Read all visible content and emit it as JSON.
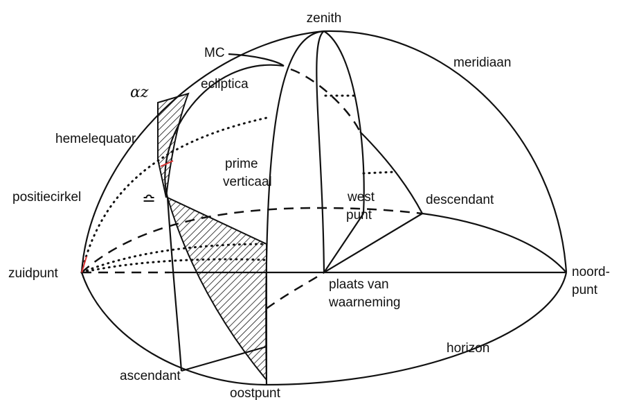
{
  "labels": [
    {
      "text": "zenith"
    },
    {
      "text": "MC"
    },
    {
      "text": "meridiaan"
    },
    {
      "text": "ecliptica"
    },
    {
      "text": "αz"
    },
    {
      "text": "hemelequator"
    },
    {
      "text": "positiecirkel"
    },
    {
      "text": "≏"
    },
    {
      "lines": [
        "prime",
        "verticaal"
      ]
    },
    {
      "lines": [
        "west",
        "punt"
      ]
    },
    {
      "text": "descendant"
    },
    {
      "text": "zuidpunt"
    },
    {
      "lines": [
        "noord-",
        "punt"
      ]
    },
    {
      "lines": [
        "plaats van",
        "waarneming"
      ]
    },
    {
      "text": "horizon"
    },
    {
      "text": "ascendant"
    },
    {
      "text": "oostpunt"
    }
  ]
}
